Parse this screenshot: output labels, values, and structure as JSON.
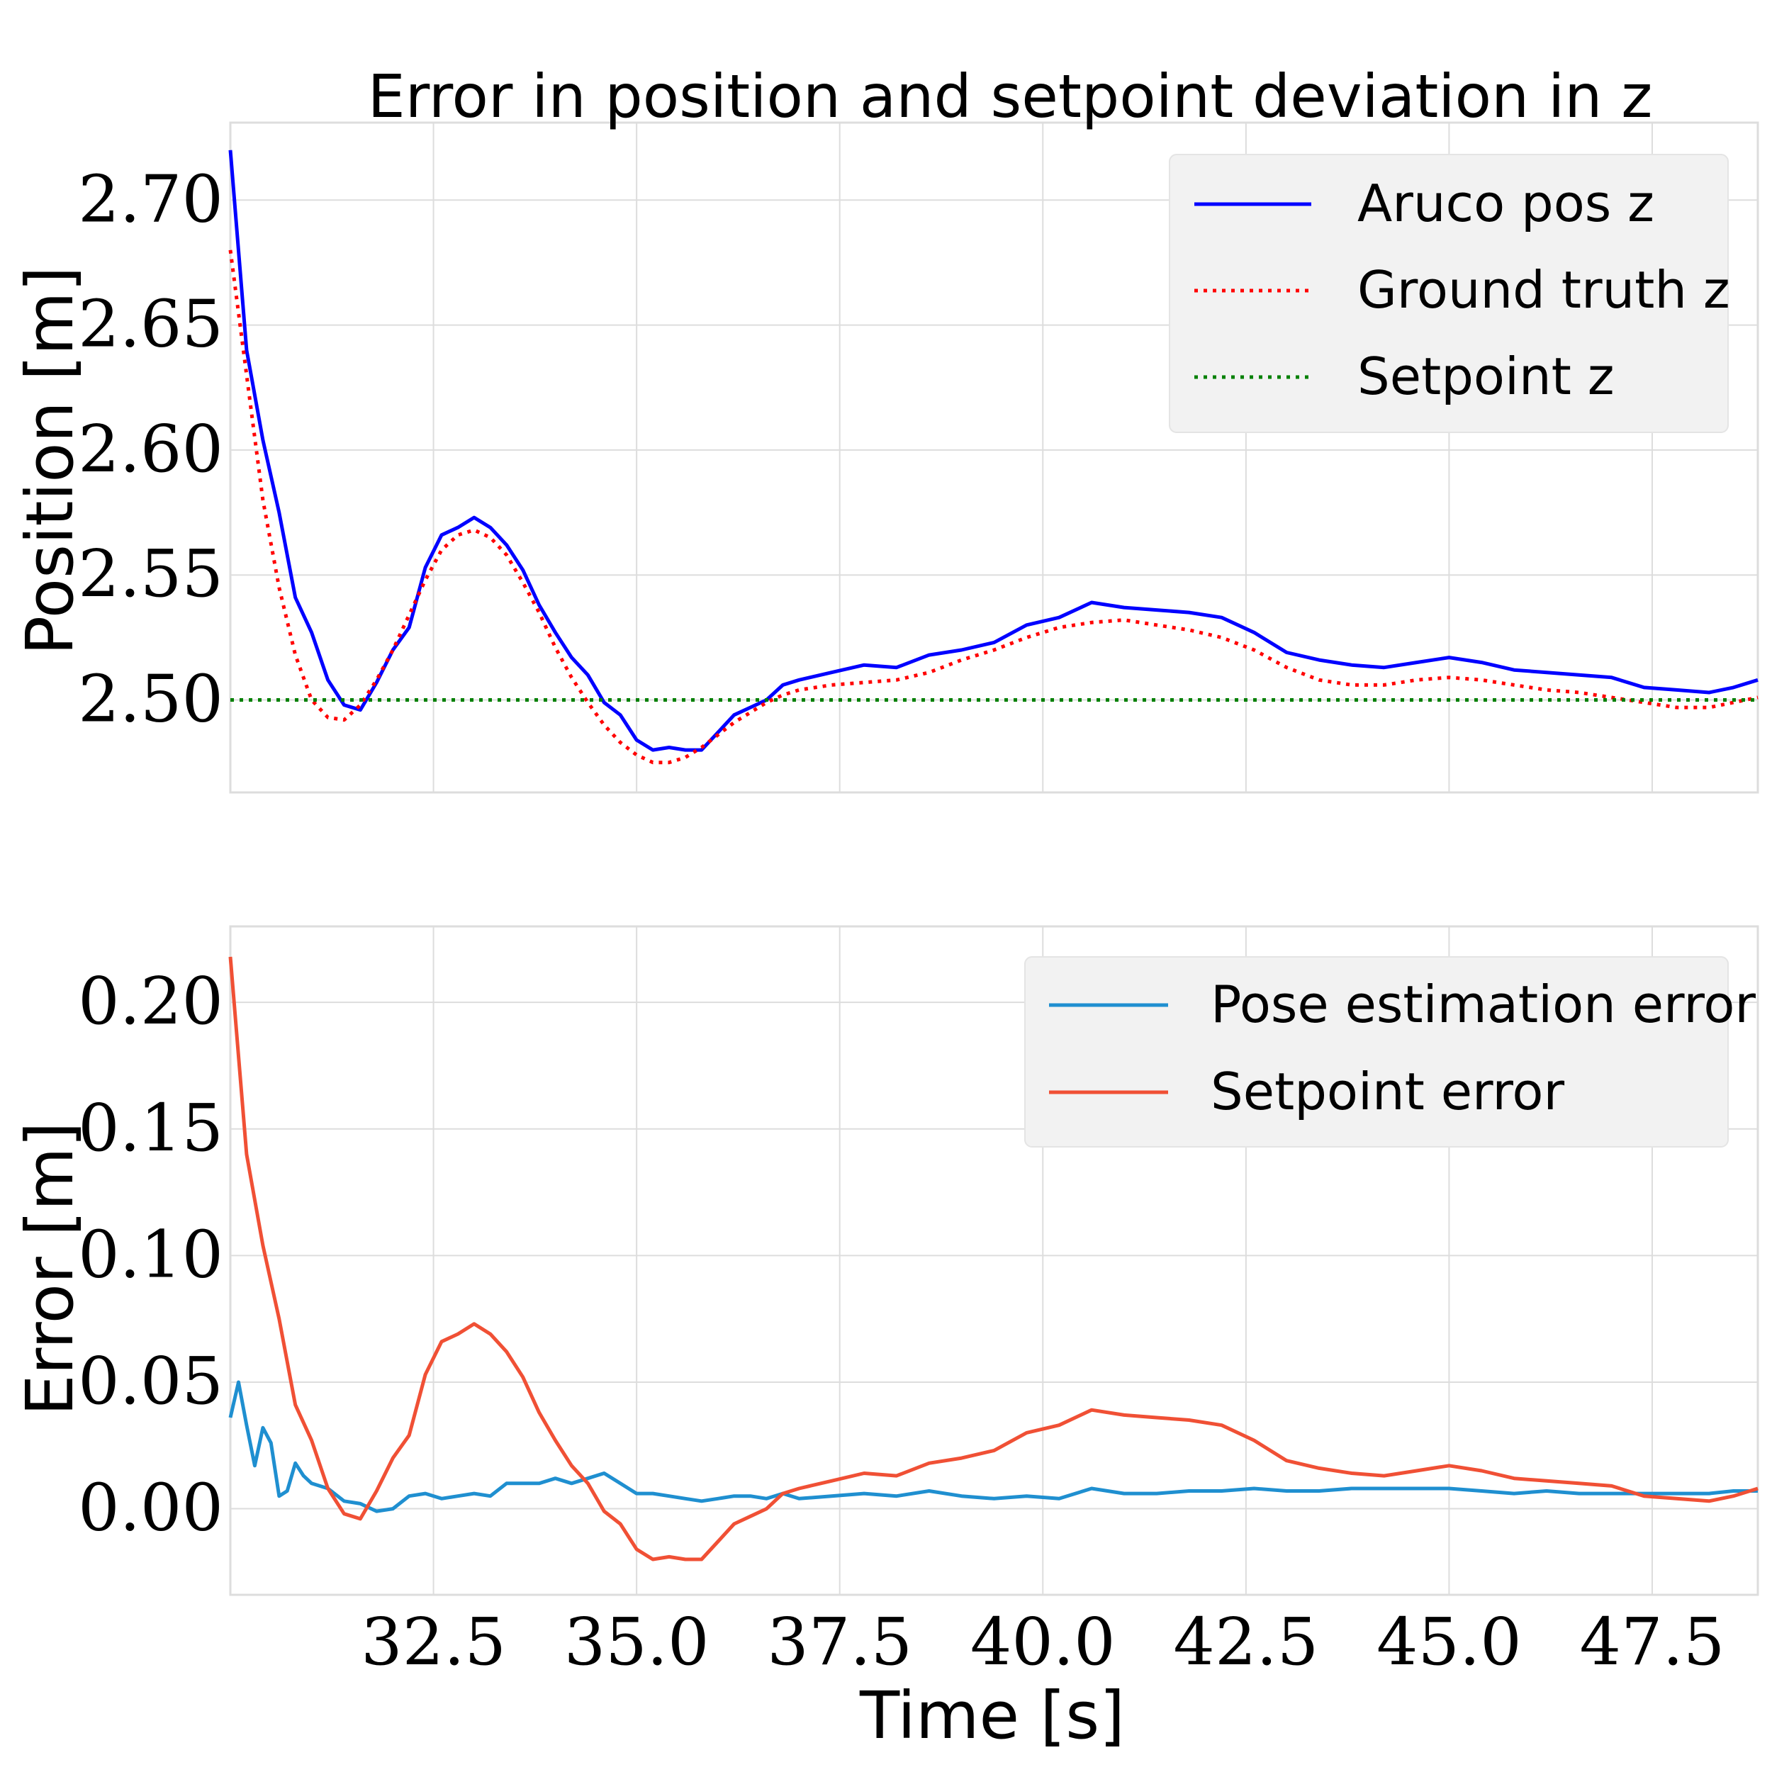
{
  "chart_data": [
    {
      "type": "line",
      "title": "Error in position and setpoint deviation in z",
      "xlabel": "",
      "ylabel": "Position [m]",
      "xlim": [
        30.0,
        48.8
      ],
      "ylim": [
        2.463,
        2.731
      ],
      "xticks": [
        "32.5",
        "35.0",
        "37.5",
        "40.0",
        "42.5",
        "45.0",
        "47.5"
      ],
      "xtick_values": [
        32.5,
        35.0,
        37.5,
        40.0,
        42.5,
        45.0,
        47.5
      ],
      "xticklabels_visible": false,
      "yticks": [
        "2.50",
        "2.55",
        "2.60",
        "2.65",
        "2.70"
      ],
      "ytick_values": [
        2.5,
        2.55,
        2.6,
        2.65,
        2.7
      ],
      "grid": true,
      "legend_position": "upper-right",
      "series": [
        {
          "name": "Aruco pos z",
          "color": "#0000ff",
          "style": "solid",
          "x": [
            30.0,
            30.2,
            30.4,
            30.6,
            30.8,
            31.0,
            31.2,
            31.4,
            31.6,
            31.8,
            32.0,
            32.2,
            32.4,
            32.6,
            32.8,
            33.0,
            33.2,
            33.4,
            33.6,
            33.8,
            34.0,
            34.2,
            34.4,
            34.6,
            34.8,
            35.0,
            35.2,
            35.4,
            35.6,
            35.8,
            36.0,
            36.2,
            36.4,
            36.6,
            36.8,
            37.0,
            37.4,
            37.8,
            38.2,
            38.6,
            39.0,
            39.4,
            39.8,
            40.2,
            40.6,
            41.0,
            41.4,
            41.8,
            42.2,
            42.6,
            43.0,
            43.4,
            43.8,
            44.2,
            44.6,
            45.0,
            45.4,
            45.8,
            46.2,
            46.6,
            47.0,
            47.4,
            47.8,
            48.2,
            48.5,
            48.8
          ],
          "y": [
            2.72,
            2.64,
            2.604,
            2.575,
            2.541,
            2.527,
            2.508,
            2.498,
            2.496,
            2.507,
            2.52,
            2.529,
            2.553,
            2.566,
            2.569,
            2.573,
            2.569,
            2.562,
            2.552,
            2.538,
            2.527,
            2.517,
            2.51,
            2.499,
            2.494,
            2.484,
            2.48,
            2.481,
            2.48,
            2.48,
            2.487,
            2.494,
            2.497,
            2.5,
            2.506,
            2.508,
            2.511,
            2.514,
            2.513,
            2.518,
            2.52,
            2.523,
            2.53,
            2.533,
            2.539,
            2.537,
            2.536,
            2.535,
            2.533,
            2.527,
            2.519,
            2.516,
            2.514,
            2.513,
            2.515,
            2.517,
            2.515,
            2.512,
            2.511,
            2.51,
            2.509,
            2.505,
            2.504,
            2.503,
            2.505,
            2.508
          ]
        },
        {
          "name": "Ground truth z",
          "color": "#ff0000",
          "style": "dotted",
          "x": [
            30.0,
            30.2,
            30.4,
            30.6,
            30.8,
            31.0,
            31.2,
            31.4,
            31.6,
            31.8,
            32.0,
            32.2,
            32.4,
            32.6,
            32.8,
            33.0,
            33.2,
            33.4,
            33.6,
            33.8,
            34.0,
            34.2,
            34.4,
            34.6,
            34.8,
            35.0,
            35.2,
            35.4,
            35.6,
            35.8,
            36.0,
            36.2,
            36.4,
            36.6,
            36.8,
            37.0,
            37.4,
            37.8,
            38.2,
            38.6,
            39.0,
            39.4,
            39.8,
            40.2,
            40.6,
            41.0,
            41.4,
            41.8,
            42.2,
            42.6,
            43.0,
            43.4,
            43.8,
            44.2,
            44.6,
            45.0,
            45.4,
            45.8,
            46.2,
            46.6,
            47.0,
            47.4,
            47.8,
            48.2,
            48.5,
            48.8
          ],
          "y": [
            2.68,
            2.63,
            2.58,
            2.545,
            2.518,
            2.5,
            2.493,
            2.492,
            2.498,
            2.508,
            2.52,
            2.534,
            2.548,
            2.56,
            2.566,
            2.568,
            2.565,
            2.558,
            2.547,
            2.535,
            2.521,
            2.509,
            2.499,
            2.49,
            2.483,
            2.478,
            2.475,
            2.475,
            2.477,
            2.481,
            2.486,
            2.491,
            2.495,
            2.499,
            2.502,
            2.504,
            2.506,
            2.507,
            2.508,
            2.511,
            2.516,
            2.52,
            2.525,
            2.529,
            2.531,
            2.532,
            2.53,
            2.528,
            2.525,
            2.52,
            2.513,
            2.508,
            2.506,
            2.506,
            2.508,
            2.509,
            2.508,
            2.506,
            2.504,
            2.503,
            2.501,
            2.499,
            2.497,
            2.497,
            2.499,
            2.501
          ]
        },
        {
          "name": "Setpoint z",
          "color": "#008000",
          "style": "dotted",
          "x": [
            30.0,
            48.8
          ],
          "y": [
            2.5,
            2.5
          ]
        }
      ]
    },
    {
      "type": "line",
      "title": "",
      "xlabel": "Time [s]",
      "ylabel": "Error [m]",
      "xlim": [
        30.0,
        48.8
      ],
      "ylim": [
        -0.034,
        0.23
      ],
      "xticks": [
        "32.5",
        "35.0",
        "37.5",
        "40.0",
        "42.5",
        "45.0",
        "47.5"
      ],
      "xtick_values": [
        32.5,
        35.0,
        37.5,
        40.0,
        42.5,
        45.0,
        47.5
      ],
      "xticklabels_visible": true,
      "yticks": [
        "0.00",
        "0.05",
        "0.10",
        "0.15",
        "0.20"
      ],
      "ytick_values": [
        0.0,
        0.05,
        0.1,
        0.15,
        0.2
      ],
      "grid": true,
      "legend_position": "upper-right",
      "series": [
        {
          "name": "Pose estimation error",
          "color": "#1f8fd0",
          "style": "solid",
          "x": [
            30.0,
            30.1,
            30.2,
            30.3,
            30.4,
            30.5,
            30.6,
            30.7,
            30.8,
            30.9,
            31.0,
            31.2,
            31.4,
            31.6,
            31.8,
            32.0,
            32.2,
            32.4,
            32.6,
            32.8,
            33.0,
            33.2,
            33.4,
            33.6,
            33.8,
            34.0,
            34.2,
            34.4,
            34.6,
            34.8,
            35.0,
            35.2,
            35.4,
            35.6,
            35.8,
            36.0,
            36.2,
            36.4,
            36.6,
            36.8,
            37.0,
            37.4,
            37.8,
            38.2,
            38.6,
            39.0,
            39.4,
            39.8,
            40.2,
            40.6,
            41.0,
            41.4,
            41.8,
            42.2,
            42.6,
            43.0,
            43.4,
            43.8,
            44.2,
            44.6,
            45.0,
            45.4,
            45.8,
            46.2,
            46.6,
            47.0,
            47.4,
            47.8,
            48.2,
            48.5,
            48.8
          ],
          "y": [
            0.036,
            0.05,
            0.033,
            0.017,
            0.032,
            0.026,
            0.005,
            0.007,
            0.018,
            0.013,
            0.01,
            0.008,
            0.003,
            0.002,
            -0.001,
            0.0,
            0.005,
            0.006,
            0.004,
            0.005,
            0.006,
            0.005,
            0.01,
            0.01,
            0.01,
            0.012,
            0.01,
            0.012,
            0.014,
            0.01,
            0.006,
            0.006,
            0.005,
            0.004,
            0.003,
            0.004,
            0.005,
            0.005,
            0.004,
            0.006,
            0.004,
            0.005,
            0.006,
            0.005,
            0.007,
            0.005,
            0.004,
            0.005,
            0.004,
            0.008,
            0.006,
            0.006,
            0.007,
            0.007,
            0.008,
            0.007,
            0.007,
            0.008,
            0.008,
            0.008,
            0.008,
            0.007,
            0.006,
            0.007,
            0.006,
            0.006,
            0.006,
            0.006,
            0.006,
            0.007,
            0.007
          ]
        },
        {
          "name": "Setpoint error",
          "color": "#f05035",
          "style": "solid",
          "x": [
            30.0,
            30.2,
            30.4,
            30.6,
            30.8,
            31.0,
            31.2,
            31.4,
            31.6,
            31.8,
            32.0,
            32.2,
            32.4,
            32.6,
            32.8,
            33.0,
            33.2,
            33.4,
            33.6,
            33.8,
            34.0,
            34.2,
            34.4,
            34.6,
            34.8,
            35.0,
            35.2,
            35.4,
            35.6,
            35.8,
            36.0,
            36.2,
            36.4,
            36.6,
            36.8,
            37.0,
            37.4,
            37.8,
            38.2,
            38.6,
            39.0,
            39.4,
            39.8,
            40.2,
            40.6,
            41.0,
            41.4,
            41.8,
            42.2,
            42.6,
            43.0,
            43.4,
            43.8,
            44.2,
            44.6,
            45.0,
            45.4,
            45.8,
            46.2,
            46.6,
            47.0,
            47.4,
            47.8,
            48.2,
            48.5,
            48.8
          ],
          "y": [
            0.218,
            0.14,
            0.104,
            0.075,
            0.041,
            0.027,
            0.008,
            -0.002,
            -0.004,
            0.007,
            0.02,
            0.029,
            0.053,
            0.066,
            0.069,
            0.073,
            0.069,
            0.062,
            0.052,
            0.038,
            0.027,
            0.017,
            0.01,
            -0.001,
            -0.006,
            -0.016,
            -0.02,
            -0.019,
            -0.02,
            -0.02,
            -0.013,
            -0.006,
            -0.003,
            0.0,
            0.006,
            0.008,
            0.011,
            0.014,
            0.013,
            0.018,
            0.02,
            0.023,
            0.03,
            0.033,
            0.039,
            0.037,
            0.036,
            0.035,
            0.033,
            0.027,
            0.019,
            0.016,
            0.014,
            0.013,
            0.015,
            0.017,
            0.015,
            0.012,
            0.011,
            0.01,
            0.009,
            0.005,
            0.004,
            0.003,
            0.005,
            0.008
          ]
        }
      ]
    }
  ]
}
